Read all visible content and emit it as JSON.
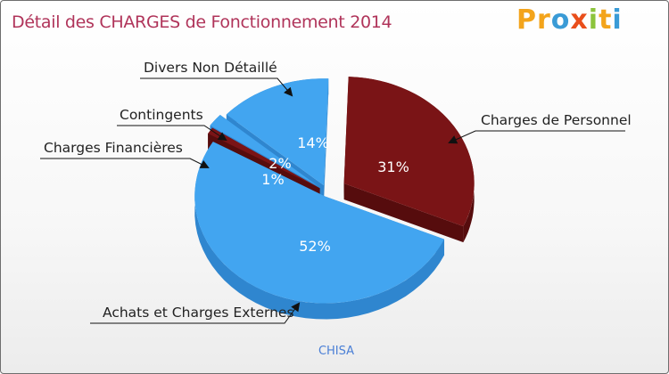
{
  "title": "Détail des CHARGES de Fonctionnement 2014",
  "logo": {
    "letters": [
      "P",
      "r",
      "o",
      "x",
      "i",
      "t",
      "i"
    ],
    "colors": [
      "#f3a41b",
      "#f3a41b",
      "#3a9bd6",
      "#e94e1b",
      "#8cc43c",
      "#f3a41b",
      "#3a9bd6"
    ]
  },
  "colors": {
    "blue": "#42a5f0",
    "blue_side": "#2f86cf",
    "red": "#7a1416",
    "red_side": "#560c0d"
  },
  "chart_data": {
    "type": "pie",
    "title": "Détail des CHARGES de Fonctionnement 2014",
    "subject": "CHISA",
    "slices": [
      {
        "label": "Charges de Personnel",
        "percent": 31,
        "value_label": "31%",
        "color": "#7a1416"
      },
      {
        "label": "Achats et Charges Externes",
        "percent": 52,
        "value_label": "52%",
        "color": "#42a5f0"
      },
      {
        "label": "Charges Financières",
        "percent": 1,
        "value_label": "1%",
        "color": "#7a1416"
      },
      {
        "label": "Contingents",
        "percent": 2,
        "value_label": "2%",
        "color": "#42a5f0"
      },
      {
        "label": "Divers Non Détaillé",
        "percent": 14,
        "value_label": "14%",
        "color": "#42a5f0"
      }
    ]
  }
}
